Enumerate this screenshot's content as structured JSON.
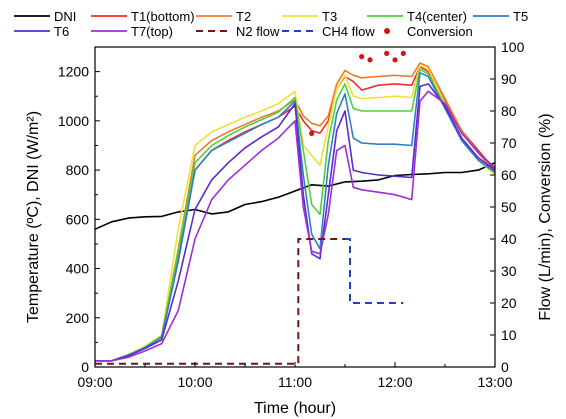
{
  "chart_data": {
    "type": "line",
    "xlabel": "Time (hour)",
    "ylabel_left": "Temperature (ºC), DNI (W/m²)",
    "ylabel_right": "Flow (L/min), Conversion (%)",
    "xlim": [
      "09:00",
      "13:00"
    ],
    "xticks": [
      "09:00",
      "10:00",
      "11:00",
      "12:00",
      "13:00"
    ],
    "ylim_left": [
      0,
      1300
    ],
    "yticks_left": [
      0,
      200,
      400,
      600,
      800,
      1000,
      1200
    ],
    "ylim_right": [
      0,
      100
    ],
    "yticks_right": [
      0,
      10,
      20,
      30,
      40,
      50,
      60,
      70,
      80,
      90,
      100
    ],
    "grid": "off",
    "legend_position": "top",
    "series": [
      {
        "name": "DNI",
        "axis": "left",
        "color": "#000000",
        "style": "solid",
        "points": [
          [
            "09:00",
            560
          ],
          [
            "09:10",
            590
          ],
          [
            "09:20",
            605
          ],
          [
            "09:30",
            610
          ],
          [
            "09:40",
            612
          ],
          [
            "09:50",
            630
          ],
          [
            "10:00",
            640
          ],
          [
            "10:10",
            622
          ],
          [
            "10:20",
            630
          ],
          [
            "10:30",
            660
          ],
          [
            "10:40",
            672
          ],
          [
            "10:50",
            690
          ],
          [
            "11:00",
            715
          ],
          [
            "11:10",
            740
          ],
          [
            "11:20",
            735
          ],
          [
            "11:30",
            752
          ],
          [
            "11:40",
            755
          ],
          [
            "11:50",
            760
          ],
          [
            "12:00",
            778
          ],
          [
            "12:10",
            782
          ],
          [
            "12:20",
            785
          ],
          [
            "12:30",
            790
          ],
          [
            "12:40",
            790
          ],
          [
            "12:50",
            800
          ],
          [
            "13:00",
            830
          ]
        ]
      },
      {
        "name": "T1(bottom)",
        "axis": "left",
        "color": "#e8312a",
        "style": "solid",
        "points": [
          [
            "09:00",
            25
          ],
          [
            "09:10",
            25
          ],
          [
            "09:20",
            50
          ],
          [
            "09:30",
            80
          ],
          [
            "09:40",
            120
          ],
          [
            "09:50",
            450
          ],
          [
            "10:00",
            800
          ],
          [
            "10:10",
            880
          ],
          [
            "10:20",
            920
          ],
          [
            "10:30",
            955
          ],
          [
            "10:40",
            985
          ],
          [
            "10:50",
            1015
          ],
          [
            "11:00",
            1060
          ],
          [
            "11:05",
            1000
          ],
          [
            "11:10",
            960
          ],
          [
            "11:15",
            950
          ],
          [
            "11:20",
            1000
          ],
          [
            "11:25",
            1130
          ],
          [
            "11:30",
            1180
          ],
          [
            "11:35",
            1160
          ],
          [
            "11:40",
            1125
          ],
          [
            "11:50",
            1145
          ],
          [
            "12:00",
            1150
          ],
          [
            "12:10",
            1145
          ],
          [
            "12:15",
            1220
          ],
          [
            "12:20",
            1200
          ],
          [
            "12:30",
            1080
          ],
          [
            "12:40",
            960
          ],
          [
            "12:50",
            880
          ],
          [
            "13:00",
            800
          ]
        ]
      },
      {
        "name": "T2",
        "axis": "left",
        "color": "#f07a2a",
        "style": "solid",
        "points": [
          [
            "09:00",
            25
          ],
          [
            "09:10",
            25
          ],
          [
            "09:20",
            50
          ],
          [
            "09:30",
            82
          ],
          [
            "09:40",
            125
          ],
          [
            "09:50",
            480
          ],
          [
            "10:00",
            860
          ],
          [
            "10:10",
            920
          ],
          [
            "10:20",
            955
          ],
          [
            "10:30",
            985
          ],
          [
            "10:40",
            1015
          ],
          [
            "10:50",
            1040
          ],
          [
            "11:00",
            1085
          ],
          [
            "11:05",
            1020
          ],
          [
            "11:10",
            990
          ],
          [
            "11:15",
            980
          ],
          [
            "11:20",
            1020
          ],
          [
            "11:25",
            1150
          ],
          [
            "11:30",
            1205
          ],
          [
            "11:35",
            1185
          ],
          [
            "11:40",
            1175
          ],
          [
            "11:50",
            1180
          ],
          [
            "12:00",
            1185
          ],
          [
            "12:10",
            1180
          ],
          [
            "12:15",
            1235
          ],
          [
            "12:20",
            1220
          ],
          [
            "12:30",
            1090
          ],
          [
            "12:40",
            960
          ],
          [
            "12:50",
            870
          ],
          [
            "13:00",
            790
          ]
        ]
      },
      {
        "name": "T3",
        "axis": "left",
        "color": "#f2e03a",
        "style": "solid",
        "points": [
          [
            "09:00",
            25
          ],
          [
            "09:10",
            25
          ],
          [
            "09:20",
            50
          ],
          [
            "09:30",
            85
          ],
          [
            "09:40",
            130
          ],
          [
            "09:50",
            560
          ],
          [
            "10:00",
            900
          ],
          [
            "10:10",
            955
          ],
          [
            "10:20",
            985
          ],
          [
            "10:30",
            1015
          ],
          [
            "10:40",
            1040
          ],
          [
            "10:50",
            1070
          ],
          [
            "11:00",
            1120
          ],
          [
            "11:05",
            900
          ],
          [
            "11:10",
            860
          ],
          [
            "11:15",
            820
          ],
          [
            "11:20",
            980
          ],
          [
            "11:25",
            1130
          ],
          [
            "11:30",
            1185
          ],
          [
            "11:35",
            1100
          ],
          [
            "11:40",
            1090
          ],
          [
            "11:50",
            1095
          ],
          [
            "12:00",
            1100
          ],
          [
            "12:10",
            1095
          ],
          [
            "12:15",
            1225
          ],
          [
            "12:20",
            1210
          ],
          [
            "12:30",
            1070
          ],
          [
            "12:40",
            930
          ],
          [
            "12:50",
            840
          ],
          [
            "13:00",
            780
          ]
        ]
      },
      {
        "name": "T4(center)",
        "axis": "left",
        "color": "#4fd13c",
        "style": "solid",
        "points": [
          [
            "09:00",
            25
          ],
          [
            "09:10",
            25
          ],
          [
            "09:20",
            50
          ],
          [
            "09:30",
            80
          ],
          [
            "09:40",
            125
          ],
          [
            "09:50",
            470
          ],
          [
            "10:00",
            830
          ],
          [
            "10:10",
            900
          ],
          [
            "10:20",
            940
          ],
          [
            "10:30",
            975
          ],
          [
            "10:40",
            1005
          ],
          [
            "10:50",
            1035
          ],
          [
            "11:00",
            1095
          ],
          [
            "11:05",
            880
          ],
          [
            "11:10",
            660
          ],
          [
            "11:15",
            620
          ],
          [
            "11:20",
            920
          ],
          [
            "11:25",
            1085
          ],
          [
            "11:30",
            1150
          ],
          [
            "11:35",
            1050
          ],
          [
            "11:40",
            1040
          ],
          [
            "11:50",
            1040
          ],
          [
            "12:00",
            1040
          ],
          [
            "12:10",
            1040
          ],
          [
            "12:15",
            1210
          ],
          [
            "12:20",
            1190
          ],
          [
            "12:30",
            1060
          ],
          [
            "12:40",
            920
          ],
          [
            "12:50",
            840
          ],
          [
            "13:00",
            790
          ]
        ]
      },
      {
        "name": "T5",
        "axis": "left",
        "color": "#2f7fc8",
        "style": "solid",
        "points": [
          [
            "09:00",
            25
          ],
          [
            "09:10",
            25
          ],
          [
            "09:20",
            48
          ],
          [
            "09:30",
            78
          ],
          [
            "09:40",
            120
          ],
          [
            "09:50",
            430
          ],
          [
            "10:00",
            800
          ],
          [
            "10:10",
            880
          ],
          [
            "10:20",
            915
          ],
          [
            "10:30",
            950
          ],
          [
            "10:40",
            985
          ],
          [
            "10:50",
            1015
          ],
          [
            "11:00",
            1080
          ],
          [
            "11:05",
            780
          ],
          [
            "11:10",
            540
          ],
          [
            "11:15",
            480
          ],
          [
            "11:20",
            820
          ],
          [
            "11:25",
            1030
          ],
          [
            "11:30",
            1110
          ],
          [
            "11:35",
            930
          ],
          [
            "11:40",
            910
          ],
          [
            "11:50",
            905
          ],
          [
            "12:00",
            905
          ],
          [
            "12:10",
            900
          ],
          [
            "12:15",
            1195
          ],
          [
            "12:20",
            1180
          ],
          [
            "12:30",
            1050
          ],
          [
            "12:40",
            920
          ],
          [
            "12:50",
            840
          ],
          [
            "13:00",
            790
          ]
        ]
      },
      {
        "name": "T6",
        "axis": "left",
        "color": "#5a2bd0",
        "style": "solid",
        "points": [
          [
            "09:00",
            25
          ],
          [
            "09:10",
            25
          ],
          [
            "09:20",
            45
          ],
          [
            "09:30",
            75
          ],
          [
            "09:40",
            110
          ],
          [
            "09:50",
            350
          ],
          [
            "10:00",
            640
          ],
          [
            "10:10",
            760
          ],
          [
            "10:20",
            830
          ],
          [
            "10:30",
            890
          ],
          [
            "10:40",
            935
          ],
          [
            "10:50",
            975
          ],
          [
            "11:00",
            1070
          ],
          [
            "11:05",
            700
          ],
          [
            "11:10",
            460
          ],
          [
            "11:15",
            440
          ],
          [
            "11:20",
            700
          ],
          [
            "11:25",
            960
          ],
          [
            "11:30",
            1040
          ],
          [
            "11:35",
            800
          ],
          [
            "11:40",
            790
          ],
          [
            "11:50",
            780
          ],
          [
            "12:00",
            775
          ],
          [
            "12:10",
            770
          ],
          [
            "12:15",
            1140
          ],
          [
            "12:20",
            1150
          ],
          [
            "12:30",
            1060
          ],
          [
            "12:40",
            930
          ],
          [
            "12:50",
            850
          ],
          [
            "13:00",
            800
          ]
        ]
      },
      {
        "name": "T7(top)",
        "axis": "left",
        "color": "#9b2fd8",
        "style": "solid",
        "points": [
          [
            "09:00",
            25
          ],
          [
            "09:10",
            25
          ],
          [
            "09:20",
            40
          ],
          [
            "09:30",
            65
          ],
          [
            "09:40",
            95
          ],
          [
            "09:50",
            230
          ],
          [
            "10:00",
            520
          ],
          [
            "10:10",
            680
          ],
          [
            "10:20",
            760
          ],
          [
            "10:30",
            820
          ],
          [
            "10:40",
            880
          ],
          [
            "10:50",
            930
          ],
          [
            "11:00",
            1000
          ],
          [
            "11:05",
            650
          ],
          [
            "11:10",
            470
          ],
          [
            "11:15",
            460
          ],
          [
            "11:20",
            620
          ],
          [
            "11:25",
            880
          ],
          [
            "11:30",
            900
          ],
          [
            "11:35",
            730
          ],
          [
            "11:40",
            720
          ],
          [
            "11:50",
            710
          ],
          [
            "12:00",
            700
          ],
          [
            "12:10",
            680
          ],
          [
            "12:15",
            1080
          ],
          [
            "12:20",
            1120
          ],
          [
            "12:30",
            1070
          ],
          [
            "12:40",
            950
          ],
          [
            "12:50",
            870
          ],
          [
            "13:00",
            810
          ]
        ]
      },
      {
        "name": "N2 flow",
        "axis": "right",
        "color": "#7a1414",
        "style": "dashed",
        "points": [
          [
            "09:00",
            1
          ],
          [
            "11:02",
            1
          ],
          [
            "11:02",
            40
          ],
          [
            "11:30",
            40
          ]
        ]
      },
      {
        "name": "CH4 flow",
        "axis": "right",
        "color": "#1f3fd0",
        "style": "dashed",
        "points": [
          [
            "11:30",
            40
          ],
          [
            "11:33",
            40
          ],
          [
            "11:33",
            20
          ],
          [
            "12:05",
            20
          ]
        ]
      },
      {
        "name": "Conversion",
        "axis": "right",
        "color": "#e01010",
        "style": "markers",
        "points": [
          [
            "11:10",
            73
          ],
          [
            "11:40",
            97
          ],
          [
            "11:45",
            96
          ],
          [
            "11:55",
            98
          ],
          [
            "12:00",
            96
          ],
          [
            "12:05",
            98
          ]
        ]
      }
    ]
  }
}
